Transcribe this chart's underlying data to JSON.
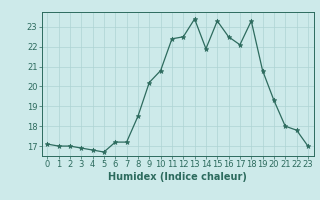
{
  "x": [
    0,
    1,
    2,
    3,
    4,
    5,
    6,
    7,
    8,
    9,
    10,
    11,
    12,
    13,
    14,
    15,
    16,
    17,
    18,
    19,
    20,
    21,
    22,
    23
  ],
  "y": [
    17.1,
    17.0,
    17.0,
    16.9,
    16.8,
    16.7,
    17.2,
    17.2,
    18.5,
    20.2,
    20.8,
    22.4,
    22.5,
    23.4,
    21.9,
    23.3,
    22.5,
    22.1,
    23.3,
    20.8,
    19.3,
    18.0,
    17.8,
    17.0
  ],
  "xlabel": "Humidex (Indice chaleur)",
  "ylim": [
    16.5,
    23.75
  ],
  "xlim": [
    -0.5,
    23.5
  ],
  "yticks": [
    17,
    18,
    19,
    20,
    21,
    22,
    23
  ],
  "xticks": [
    0,
    1,
    2,
    3,
    4,
    5,
    6,
    7,
    8,
    9,
    10,
    11,
    12,
    13,
    14,
    15,
    16,
    17,
    18,
    19,
    20,
    21,
    22,
    23
  ],
  "line_color": "#2d6b5e",
  "marker": "*",
  "marker_size": 3.5,
  "bg_color": "#cdeaea",
  "grid_color": "#aed4d4",
  "axes_color": "#2d6b5e",
  "label_fontsize": 7,
  "tick_fontsize": 6
}
